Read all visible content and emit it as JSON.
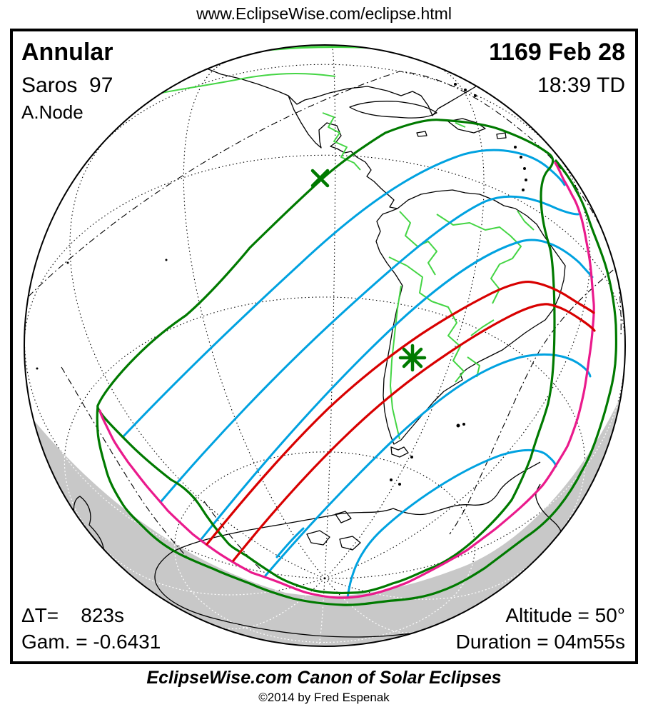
{
  "header": {
    "url": "www.EclipseWise.com/eclipse.html"
  },
  "panel": {
    "eclipse_type": "Annular",
    "saros": "Saros  97",
    "node": "A.Node",
    "date": "1169 Feb 28",
    "time": "18:39 TD",
    "delta_t": "ΔT=    823s",
    "gamma": "Gam. = -0.6431",
    "altitude": "Altitude = 50°",
    "duration": "Duration = 04m55s"
  },
  "footer": {
    "title": "EclipseWise.com Canon of Solar Eclipses",
    "copyright": "©2014 by Fred Espenak"
  },
  "markers": {
    "greatest_eclipse": "asterisk at greatest eclipse point",
    "x_point": "x reference point on penumbral limit"
  },
  "colors": {
    "penumbral_green": "#007a00",
    "border_green": "#44d544",
    "time_cyan": "#00a2e0",
    "central_red": "#d80000",
    "sunrise_sunset_magenta": "#ea1a8c",
    "night_gray": "#c8c8c8",
    "land_outline": "#000000"
  }
}
